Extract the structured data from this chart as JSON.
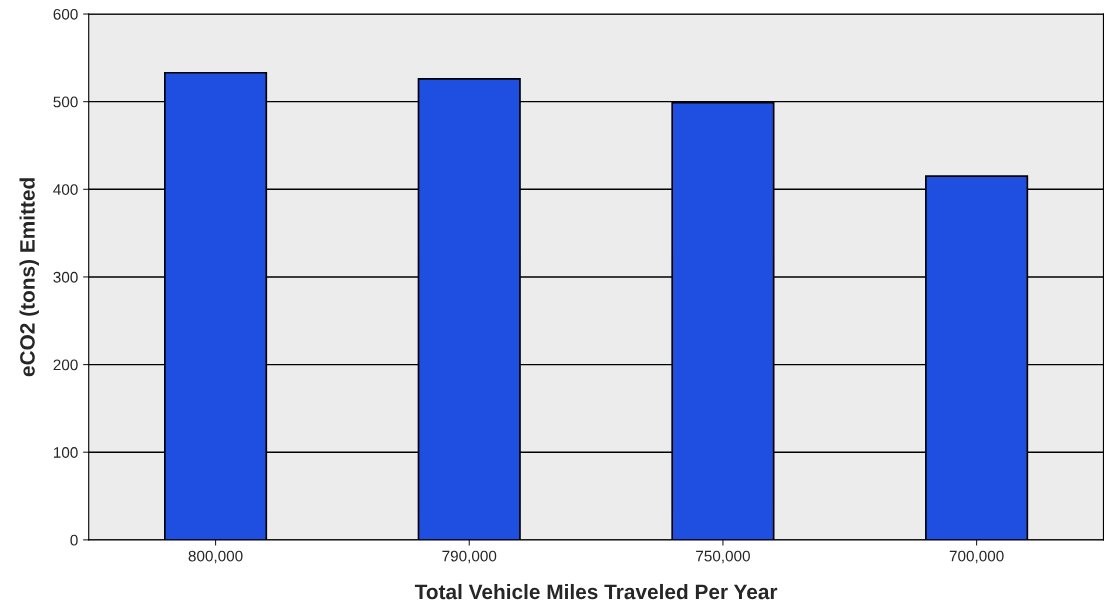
{
  "chart_data": {
    "type": "bar",
    "xlabel": "Total Vehicle Miles Traveled Per Year",
    "ylabel": "eCO2 (tons) Emitted",
    "categories": [
      "800,000",
      "790,000",
      "750,000",
      "700,000"
    ],
    "values": [
      533,
      526,
      499,
      415
    ],
    "color": "#1f4fe0",
    "ylim": [
      0,
      600
    ],
    "yticks": [
      0,
      100,
      200,
      300,
      400,
      500,
      600
    ],
    "grid": "y",
    "legend": false
  }
}
